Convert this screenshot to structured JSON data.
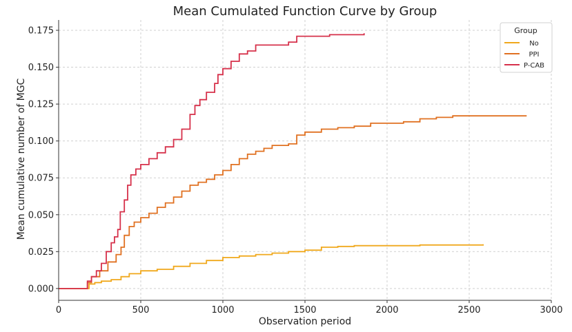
{
  "chart_data": {
    "type": "line",
    "title": "Mean Cumulated Function Curve by Group",
    "xlabel": "Observation period",
    "ylabel": "Mean cumulative number of MGC",
    "xlim": [
      0,
      3000
    ],
    "ylim": [
      -0.008,
      0.182
    ],
    "xticks": [
      0,
      500,
      1000,
      1500,
      2000,
      2500,
      3000
    ],
    "yticks": [
      0.0,
      0.025,
      0.05,
      0.075,
      0.1,
      0.125,
      0.15,
      0.175
    ],
    "xtick_labels": [
      "0",
      "500",
      "1000",
      "1500",
      "2000",
      "2500",
      "3000"
    ],
    "ytick_labels": [
      "0.000",
      "0.025",
      "0.050",
      "0.075",
      "0.100",
      "0.125",
      "0.150",
      "0.175"
    ],
    "grid": true,
    "legend": {
      "title": "Group",
      "position": "top-right"
    },
    "series": [
      {
        "name": "No",
        "color": "#f0a81b",
        "points": [
          [
            0,
            0
          ],
          [
            170,
            0
          ],
          [
            185,
            0.003
          ],
          [
            220,
            0.004
          ],
          [
            260,
            0.005
          ],
          [
            320,
            0.006
          ],
          [
            380,
            0.008
          ],
          [
            430,
            0.01
          ],
          [
            500,
            0.012
          ],
          [
            600,
            0.013
          ],
          [
            700,
            0.015
          ],
          [
            800,
            0.017
          ],
          [
            900,
            0.019
          ],
          [
            1000,
            0.021
          ],
          [
            1100,
            0.022
          ],
          [
            1200,
            0.023
          ],
          [
            1300,
            0.024
          ],
          [
            1400,
            0.025
          ],
          [
            1500,
            0.026
          ],
          [
            1600,
            0.028
          ],
          [
            1700,
            0.0285
          ],
          [
            1800,
            0.029
          ],
          [
            2000,
            0.029
          ],
          [
            2200,
            0.0295
          ],
          [
            2500,
            0.0295
          ],
          [
            2585,
            0.03
          ]
        ]
      },
      {
        "name": "PPI",
        "color": "#e07020",
        "points": [
          [
            0,
            0
          ],
          [
            170,
            0
          ],
          [
            175,
            0.004
          ],
          [
            200,
            0.008
          ],
          [
            250,
            0.012
          ],
          [
            300,
            0.018
          ],
          [
            350,
            0.023
          ],
          [
            380,
            0.028
          ],
          [
            400,
            0.036
          ],
          [
            430,
            0.042
          ],
          [
            460,
            0.045
          ],
          [
            500,
            0.048
          ],
          [
            550,
            0.051
          ],
          [
            600,
            0.055
          ],
          [
            650,
            0.058
          ],
          [
            700,
            0.062
          ],
          [
            750,
            0.066
          ],
          [
            800,
            0.07
          ],
          [
            850,
            0.072
          ],
          [
            900,
            0.074
          ],
          [
            950,
            0.077
          ],
          [
            1000,
            0.08
          ],
          [
            1050,
            0.084
          ],
          [
            1100,
            0.088
          ],
          [
            1150,
            0.091
          ],
          [
            1200,
            0.093
          ],
          [
            1250,
            0.095
          ],
          [
            1300,
            0.097
          ],
          [
            1400,
            0.098
          ],
          [
            1450,
            0.104
          ],
          [
            1500,
            0.106
          ],
          [
            1600,
            0.108
          ],
          [
            1700,
            0.109
          ],
          [
            1800,
            0.11
          ],
          [
            1900,
            0.112
          ],
          [
            2000,
            0.112
          ],
          [
            2100,
            0.113
          ],
          [
            2200,
            0.115
          ],
          [
            2300,
            0.116
          ],
          [
            2400,
            0.117
          ],
          [
            2600,
            0.117
          ],
          [
            2850,
            0.117
          ]
        ]
      },
      {
        "name": "P-CAB",
        "color": "#d6304a",
        "points": [
          [
            0,
            0
          ],
          [
            170,
            0
          ],
          [
            175,
            0.005
          ],
          [
            200,
            0.008
          ],
          [
            230,
            0.012
          ],
          [
            260,
            0.017
          ],
          [
            290,
            0.025
          ],
          [
            320,
            0.031
          ],
          [
            340,
            0.035
          ],
          [
            360,
            0.04
          ],
          [
            375,
            0.052
          ],
          [
            400,
            0.06
          ],
          [
            420,
            0.07
          ],
          [
            440,
            0.077
          ],
          [
            470,
            0.081
          ],
          [
            500,
            0.084
          ],
          [
            550,
            0.088
          ],
          [
            600,
            0.092
          ],
          [
            650,
            0.096
          ],
          [
            700,
            0.101
          ],
          [
            750,
            0.108
          ],
          [
            800,
            0.118
          ],
          [
            830,
            0.124
          ],
          [
            860,
            0.128
          ],
          [
            900,
            0.133
          ],
          [
            950,
            0.139
          ],
          [
            970,
            0.145
          ],
          [
            1000,
            0.149
          ],
          [
            1050,
            0.154
          ],
          [
            1100,
            0.159
          ],
          [
            1150,
            0.161
          ],
          [
            1200,
            0.165
          ],
          [
            1300,
            0.165
          ],
          [
            1400,
            0.167
          ],
          [
            1450,
            0.171
          ],
          [
            1500,
            0.171
          ],
          [
            1600,
            0.171
          ],
          [
            1650,
            0.172
          ],
          [
            1760,
            0.172
          ],
          [
            1860,
            0.173
          ]
        ]
      }
    ]
  }
}
